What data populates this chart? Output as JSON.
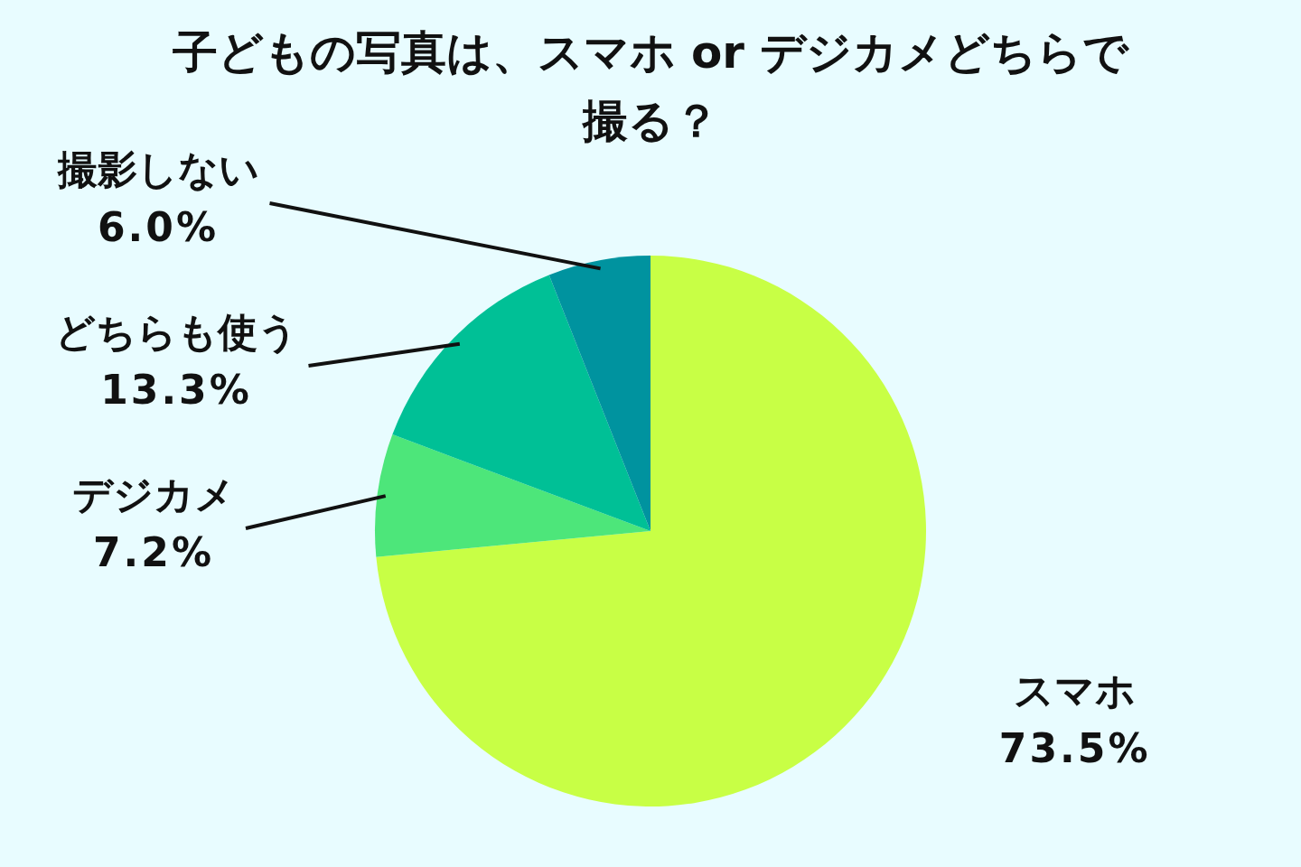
{
  "chart_data": {
    "type": "pie",
    "title": "子どもの写真は、スマホ or デジカメどちらで撮る？",
    "categories": [
      "スマホ",
      "デジカメ",
      "どちらも使う",
      "撮影しない"
    ],
    "values": [
      73.5,
      7.2,
      13.3,
      6.0
    ],
    "value_labels": [
      "73.5%",
      "7.2%",
      "13.3%",
      "6.0%"
    ],
    "colors": [
      "#c8ff45",
      "#4de67a",
      "#00c096",
      "#00939f"
    ]
  }
}
